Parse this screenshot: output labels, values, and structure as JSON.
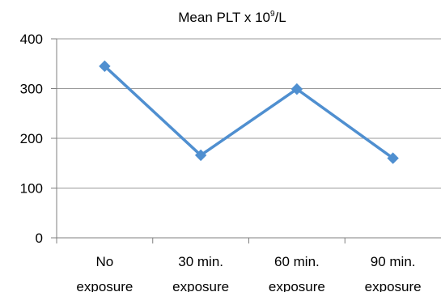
{
  "chart_data": {
    "type": "line",
    "title": {
      "main": "Mean PLT x 10",
      "superscript": "9",
      "suffix": "/L"
    },
    "xlabel": "",
    "ylabel": "",
    "categories": [
      [
        "No",
        "exposure"
      ],
      [
        "30 min.",
        "exposure"
      ],
      [
        "60 min.",
        "exposure"
      ],
      [
        "90 min.",
        "exposure"
      ]
    ],
    "series": [
      {
        "values": [
          345,
          166,
          299,
          160
        ],
        "color": "#4F8FD0"
      }
    ],
    "ylim": [
      0,
      400
    ],
    "yticks": [
      0,
      100,
      200,
      300,
      400
    ],
    "grid": true,
    "legend": "none",
    "marker": "diamond"
  }
}
